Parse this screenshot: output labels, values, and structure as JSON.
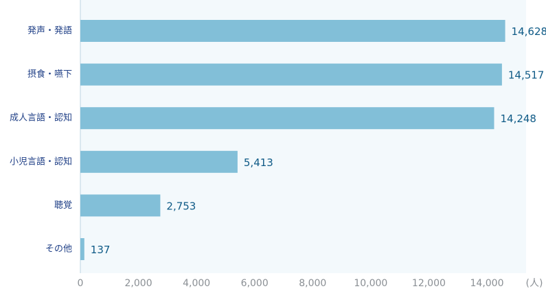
{
  "colors": {
    "bar": "#82bfd8",
    "plot_bg": "#f3f9fc",
    "axis": "#bcd4e2",
    "category_text": "#1f3f86",
    "value_text": "#0e5a86",
    "tick_text": "#8a8f94"
  },
  "chart_data": {
    "type": "bar",
    "orientation": "horizontal",
    "categories": [
      "発声・発語",
      "摂食・嚥下",
      "成人言語・認知",
      "小児言語・認知",
      "聴覚",
      "その他"
    ],
    "values": [
      14628,
      14517,
      14248,
      5413,
      2753,
      137
    ],
    "value_labels": [
      "14,628",
      "14,517",
      "14,248",
      "5,413",
      "2,753",
      "137"
    ],
    "xlim": [
      0,
      16000
    ],
    "x_ticks": [
      0,
      2000,
      4000,
      6000,
      8000,
      10000,
      12000,
      14000
    ],
    "x_tick_labels": [
      "0",
      "2,000",
      "4,000",
      "6,000",
      "8,000",
      "10,000",
      "12,000",
      "14,000"
    ],
    "unit_label": "(人)",
    "grid": false,
    "legend": "none"
  }
}
